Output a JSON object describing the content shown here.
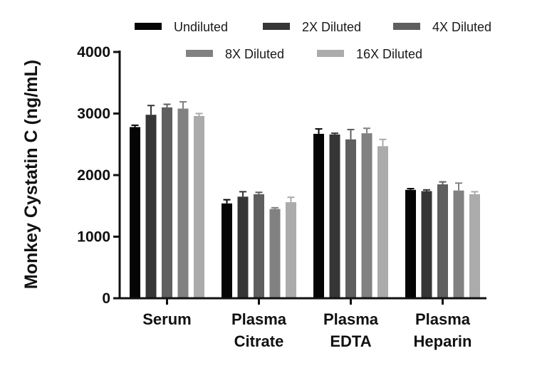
{
  "chart_data": {
    "type": "bar",
    "ylabel": "Monkey Cystatin C (ng/mL)",
    "xlabel": "",
    "ylim": [
      0,
      4000
    ],
    "yticks": [
      "0",
      "1000",
      "2000",
      "3000",
      "4000"
    ],
    "categories": [
      [
        "Serum"
      ],
      [
        "Plasma",
        "Citrate"
      ],
      [
        "Plasma",
        "EDTA"
      ],
      [
        "Plasma",
        "Heparin"
      ]
    ],
    "legend_position": "top",
    "series": [
      {
        "name": "Undiluted",
        "color": "#050505",
        "values": [
          2780,
          1540,
          2670,
          1760
        ],
        "errors": [
          30,
          60,
          80,
          20
        ]
      },
      {
        "name": "2X Diluted",
        "color": "#363636",
        "values": [
          2980,
          1650,
          2660,
          1740
        ],
        "errors": [
          150,
          80,
          20,
          20
        ]
      },
      {
        "name": "4X Diluted",
        "color": "#5f5f5f",
        "values": [
          3100,
          1690,
          2580,
          1850
        ],
        "errors": [
          50,
          30,
          160,
          40
        ]
      },
      {
        "name": "8X Diluted",
        "color": "#818181",
        "values": [
          3080,
          1450,
          2680,
          1750
        ],
        "errors": [
          110,
          20,
          80,
          120
        ]
      },
      {
        "name": "16X Diluted",
        "color": "#ababab",
        "values": [
          2960,
          1560,
          2470,
          1690
        ],
        "errors": [
          40,
          80,
          110,
          40
        ]
      }
    ]
  }
}
